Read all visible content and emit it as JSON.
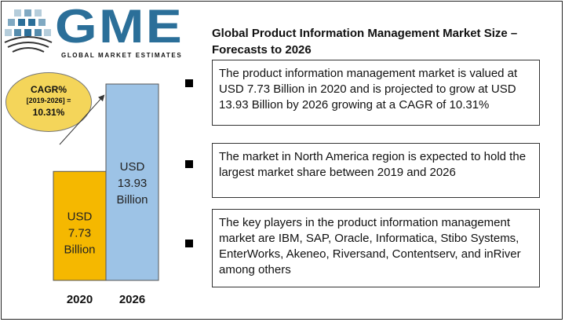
{
  "logo": {
    "letters": "GME",
    "tagline": "GLOBAL MARKET ESTIMATES",
    "color": "#2b6f99"
  },
  "title": "Global Product Information Management Market Size – Forecasts to 2026",
  "cagr": {
    "line1": "CAGR%",
    "line2": "[2019-2026] =",
    "line3": "10.31%",
    "color": "#f4d55a"
  },
  "chart_data": {
    "type": "bar",
    "categories": [
      "2020",
      "2026"
    ],
    "values": [
      7.73,
      13.93
    ],
    "labels": [
      [
        "USD",
        "7.73",
        "Billion"
      ],
      [
        "USD",
        "13.93",
        "Billion"
      ]
    ],
    "colors": [
      "#f5b800",
      "#9dc3e6"
    ],
    "title": "",
    "xlabel": "",
    "ylabel": ""
  },
  "bullets": [
    "The product information management market is valued at USD 7.73 Billion in 2020 and is projected to grow at USD 13.93 Billion by 2026 growing at a CAGR of 10.31%",
    "The market in North America region is expected to hold the largest market share between 2019 and 2026",
    "The key players in the product information management market are  IBM, SAP, Oracle, Informatica, Stibo Systems, EnterWorks, Akeneo, Riversand, Contentserv, and inRiver among others"
  ]
}
